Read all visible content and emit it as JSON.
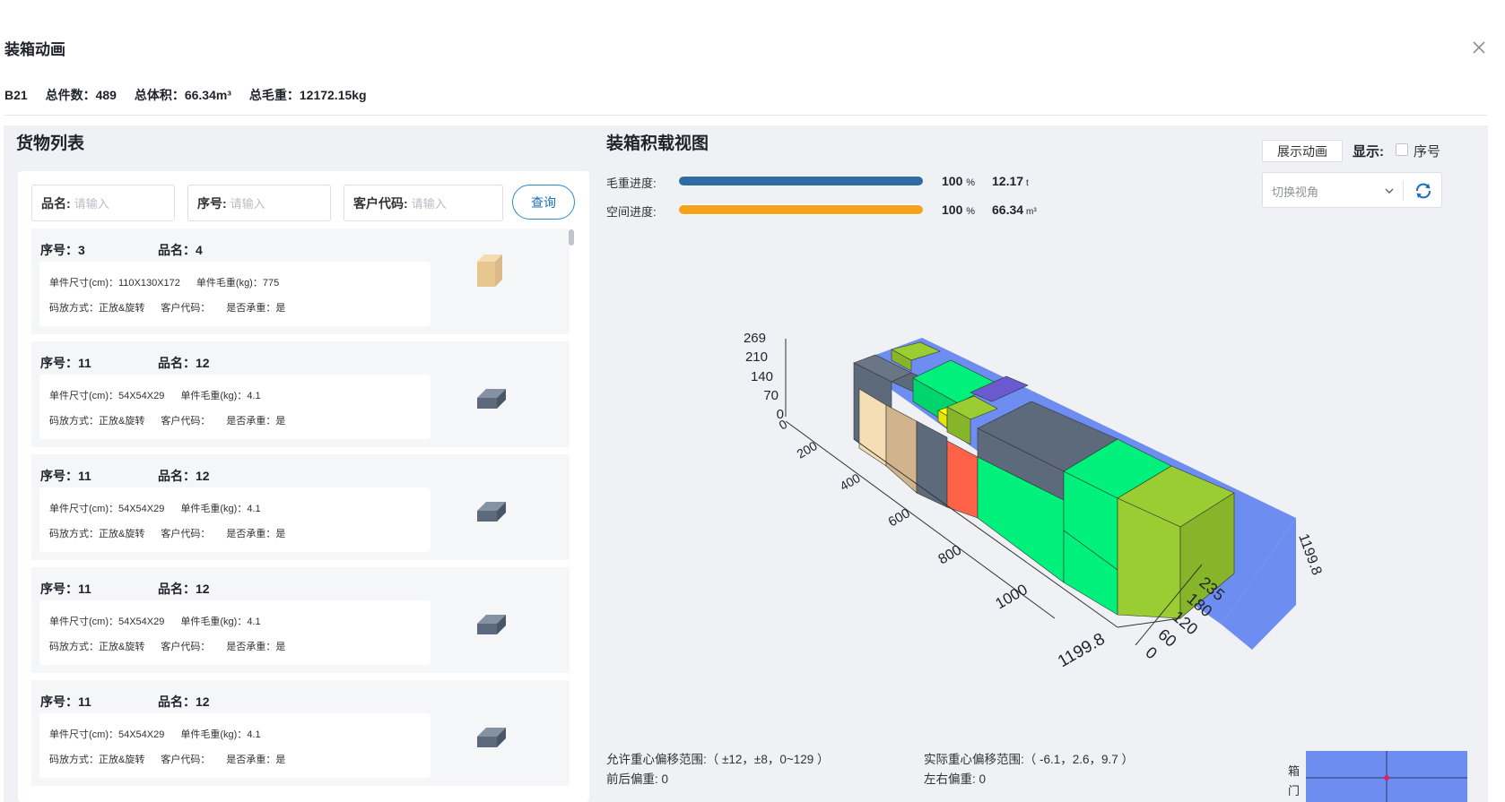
{
  "dialog": {
    "title": "装箱动画",
    "close_label": "×"
  },
  "summary": {
    "container": "B21",
    "total_pieces": "总件数：489",
    "total_volume": "总体积：66.34m³",
    "total_weight": "总毛重：12172.15kg"
  },
  "cargo_list": {
    "title": "货物列表",
    "filters": [
      {
        "label": "品名:",
        "placeholder": "请输入"
      },
      {
        "label": "序号:",
        "placeholder": "请输入"
      },
      {
        "label": "客户代码:",
        "placeholder": "请输入"
      }
    ],
    "query_button": "查询",
    "items": [
      {
        "seq": "序号：3",
        "name": "品名：4",
        "size": "单件尺寸(cm)：110X130X172",
        "weight": "单件毛重(kg)：775",
        "stack": "码放方式：正放&旋转",
        "customer": "客户代码：",
        "bearing": "是否承重：是",
        "icon": "beige-box-icon",
        "color": "#e6c58f"
      },
      {
        "seq": "序号：11",
        "name": "品名：12",
        "size": "单件尺寸(cm)：54X54X29",
        "weight": "单件毛重(kg)：4.1",
        "stack": "码放方式：正放&旋转",
        "customer": "客户代码：",
        "bearing": "是否承重：是",
        "icon": "slate-box-icon",
        "color": "#5d6a7c"
      },
      {
        "seq": "序号：11",
        "name": "品名：12",
        "size": "单件尺寸(cm)：54X54X29",
        "weight": "单件毛重(kg)：4.1",
        "stack": "码放方式：正放&旋转",
        "customer": "客户代码：",
        "bearing": "是否承重：是",
        "icon": "slate-box-icon",
        "color": "#5d6a7c"
      },
      {
        "seq": "序号：11",
        "name": "品名：12",
        "size": "单件尺寸(cm)：54X54X29",
        "weight": "单件毛重(kg)：4.1",
        "stack": "码放方式：正放&旋转",
        "customer": "客户代码：",
        "bearing": "是否承重：是",
        "icon": "slate-box-icon",
        "color": "#5d6a7c"
      },
      {
        "seq": "序号：11",
        "name": "品名：12",
        "size": "单件尺寸(cm)：54X54X29",
        "weight": "单件毛重(kg)：4.1",
        "stack": "码放方式：正放&旋转",
        "customer": "客户代码：",
        "bearing": "是否承重：是",
        "icon": "slate-box-icon",
        "color": "#5d6a7c"
      }
    ]
  },
  "loading_view": {
    "title": "装箱积载视图",
    "weight_progress": {
      "label": "毛重进度:",
      "percent": "100",
      "percent_unit": "%",
      "value": "12.17",
      "unit": "t",
      "fill_fraction": 1.0,
      "color": "#2f6ca3"
    },
    "space_progress": {
      "label": "空间进度:",
      "percent": "100",
      "percent_unit": "%",
      "value": "66.34",
      "unit": "m³",
      "fill_fraction": 1.0,
      "color": "#f7a21b"
    },
    "animate_button": "展示动画",
    "display_label": "显示:",
    "serial_checkbox_label": "序号",
    "serial_checked": false,
    "view_select_placeholder": "切换视角",
    "refresh_icon": "refresh-icon",
    "axes": {
      "z_ticks": [
        "269",
        "210",
        "140",
        "70",
        "0"
      ],
      "length_ticks": [
        "0",
        "200",
        "400",
        "600",
        "800",
        "1000",
        "1199.8"
      ],
      "width_ticks": [
        "0",
        "60",
        "120",
        "180",
        "235"
      ],
      "far_tick": "1199.8"
    },
    "allowed_cg_range": "允许重心偏移范围:（ ±12，±8，0~129 ）",
    "actual_cg_range": "实际重心偏移范围:（ -6.1，2.6，9.7 ）",
    "front_back_bias": "前后偏重:   0",
    "left_right_bias": "左右偏重:   0",
    "door_label_top": "箱",
    "door_label_bottom": "门",
    "colors": {
      "container": "#6d8df0",
      "slate": "#5d6a7c",
      "green": "#00f07c",
      "yellowgreen": "#9acd32",
      "beige": "#f5deb3",
      "tan": "#d2b48c",
      "tomato": "#ff6347",
      "yellow": "#ffff00",
      "purple": "#6a5acd"
    }
  }
}
